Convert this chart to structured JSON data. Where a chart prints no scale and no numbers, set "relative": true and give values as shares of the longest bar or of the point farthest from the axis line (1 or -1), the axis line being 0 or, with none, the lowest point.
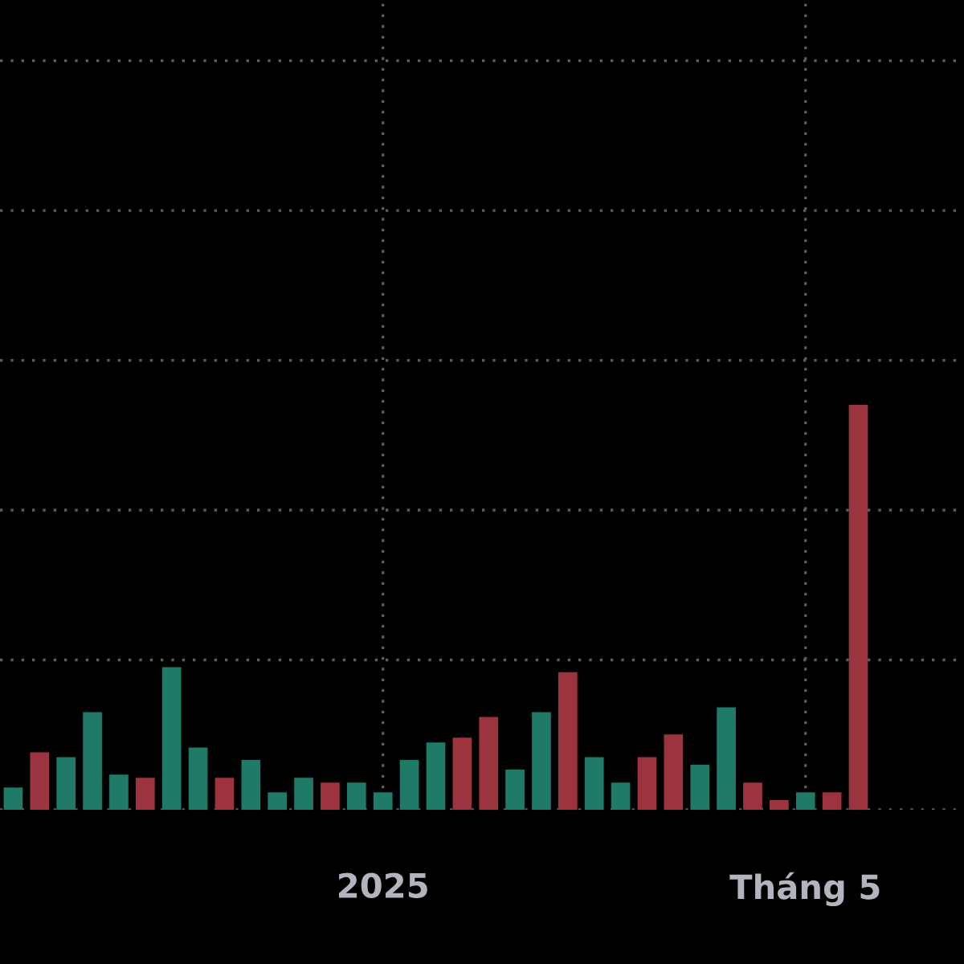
{
  "chart_data": {
    "type": "bar",
    "relative": true,
    "grid": true,
    "categories": [
      null,
      null,
      null,
      null,
      null,
      null,
      null,
      null,
      null,
      null,
      null,
      null,
      null,
      null,
      "2025",
      null,
      null,
      null,
      null,
      null,
      null,
      null,
      null,
      null,
      null,
      null,
      null,
      null,
      null,
      null,
      "Tháng 5",
      null,
      null
    ],
    "values": [
      0.055,
      0.142,
      0.13,
      0.241,
      0.087,
      0.079,
      0.352,
      0.154,
      0.079,
      0.123,
      0.043,
      0.079,
      0.067,
      0.067,
      0.043,
      0.123,
      0.166,
      0.178,
      0.229,
      0.099,
      0.241,
      0.34,
      0.13,
      0.067,
      0.13,
      0.186,
      0.111,
      0.253,
      0.067,
      0.024,
      0.043,
      0.043,
      1
    ],
    "colors": [
      "#1f7a68",
      "#9c3440",
      "#1f7a68",
      "#1f7a68",
      "#1f7a68",
      "#9c3440",
      "#1f7a68",
      "#1f7a68",
      "#9c3440",
      "#1f7a68",
      "#1f7a68",
      "#1f7a68",
      "#9c3440",
      "#1f7a68",
      "#1f7a68",
      "#1f7a68",
      "#1f7a68",
      "#9c3440",
      "#9c3440",
      "#1f7a68",
      "#1f7a68",
      "#9c3440",
      "#1f7a68",
      "#1f7a68",
      "#9c3440",
      "#9c3440",
      "#1f7a68",
      "#1f7a68",
      "#9c3440",
      "#9c3440",
      "#1f7a68",
      "#9c3440",
      "#9c3440"
    ]
  }
}
